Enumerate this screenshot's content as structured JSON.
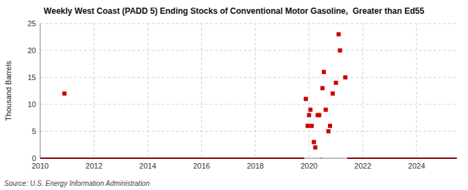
{
  "chart_data": {
    "type": "scatter",
    "title": "Weekly West Coast (PADD 5) Ending Stocks of Conventional Motor Gasoline,  Greater than Ed55",
    "ylabel": "Thousand Barrels",
    "source": "Source: U.S. Energy Information Administration",
    "xlim": [
      2010,
      2025.5
    ],
    "ylim": [
      0,
      25
    ],
    "xticks": [
      2010,
      2012,
      2014,
      2016,
      2018,
      2020,
      2022,
      2024
    ],
    "yticks": [
      0,
      5,
      10,
      15,
      20,
      25
    ],
    "grid": true,
    "series": [
      {
        "type": "scatter",
        "color": "#cc0000",
        "marker": "square",
        "x": [
          2010.9,
          2019.88,
          2019.95,
          2020.0,
          2020.05,
          2020.1,
          2020.18,
          2020.23,
          2020.32,
          2020.38,
          2020.5,
          2020.55,
          2020.62,
          2020.72,
          2020.78,
          2020.88,
          2021.0,
          2021.1,
          2021.15,
          2021.35
        ],
        "values": [
          12,
          11,
          6,
          8,
          9,
          6,
          3,
          2,
          8,
          8,
          13,
          16,
          9,
          5,
          6,
          12,
          14,
          23,
          20,
          15
        ]
      },
      {
        "type": "line",
        "color": "#7a0000",
        "line_style": "solid",
        "x": [
          2010.0,
          2019.82,
          null,
          2020.44,
          2020.46,
          null,
          2021.42,
          2025.5
        ],
        "values": [
          0,
          0,
          null,
          0,
          0,
          null,
          0,
          0
        ]
      }
    ]
  }
}
